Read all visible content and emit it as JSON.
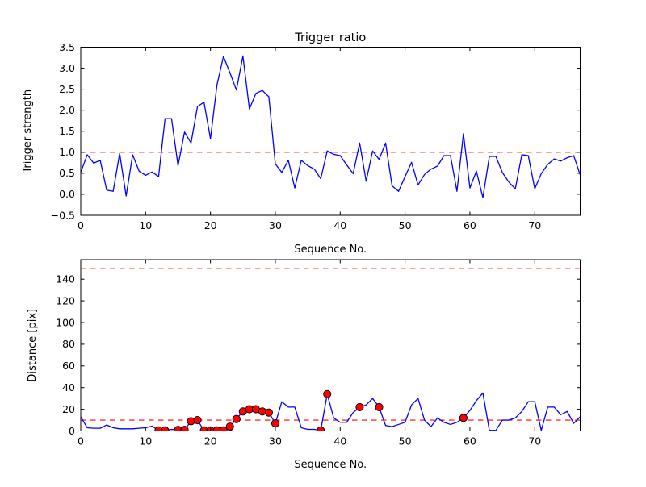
{
  "figure": {
    "background": "#ffffff",
    "frame_color": "#000000",
    "line_color": "#0000ff",
    "threshold_color": "#ff0000",
    "marker_fill": "#ff0000",
    "marker_edge": "#000000"
  },
  "chart_data": [
    {
      "type": "line",
      "title": "Trigger ratio",
      "xlabel": "Sequence No.",
      "ylabel": "Trigger strength",
      "xlim": [
        0,
        77
      ],
      "ylim": [
        -0.5,
        3.5
      ],
      "grid": false,
      "legend": "none",
      "xticks": [
        0,
        10,
        20,
        30,
        40,
        50,
        60,
        70
      ],
      "yticks": [
        -0.5,
        0.0,
        0.5,
        1.0,
        1.5,
        2.0,
        2.5,
        3.0,
        3.5
      ],
      "ytick_labels": [
        "−0.5",
        "0.0",
        "0.5",
        "1.0",
        "1.5",
        "2.0",
        "2.5",
        "3.0",
        "3.5"
      ],
      "line_color": "#0000ff",
      "thresholds": [
        {
          "y": 1.0,
          "color": "#ff0000",
          "style": "dashed"
        }
      ],
      "x_is_index": true,
      "values": [
        0.52,
        0.94,
        0.74,
        0.81,
        0.1,
        0.07,
        0.97,
        -0.04,
        0.94,
        0.55,
        0.45,
        0.53,
        0.42,
        1.8,
        1.8,
        0.68,
        1.48,
        1.22,
        2.09,
        2.19,
        1.32,
        2.6,
        3.28,
        2.89,
        2.48,
        3.29,
        2.03,
        2.4,
        2.47,
        2.32,
        0.72,
        0.52,
        0.81,
        0.15,
        0.81,
        0.68,
        0.6,
        0.37,
        1.03,
        0.95,
        0.92,
        0.7,
        0.49,
        1.22,
        0.31,
        1.03,
        0.83,
        1.22,
        0.2,
        0.07,
        0.42,
        0.76,
        0.22,
        0.47,
        0.6,
        0.67,
        0.92,
        0.92,
        0.07,
        1.44,
        0.15,
        0.55,
        -0.08,
        0.9,
        0.9,
        0.52,
        0.29,
        0.13,
        0.94,
        0.92,
        0.13,
        0.49,
        0.71,
        0.84,
        0.79,
        0.87,
        0.92,
        0.46
      ]
    },
    {
      "type": "line+scatter",
      "title": "",
      "xlabel": "Sequence No.",
      "ylabel": "Distance [pix]",
      "xlim": [
        0,
        77
      ],
      "ylim": [
        0,
        158
      ],
      "grid": false,
      "legend": "none",
      "xticks": [
        0,
        10,
        20,
        30,
        40,
        50,
        60,
        70
      ],
      "yticks": [
        0,
        20,
        40,
        60,
        80,
        100,
        120,
        140
      ],
      "ytick_labels": [
        "0",
        "20",
        "40",
        "60",
        "80",
        "100",
        "120",
        "140"
      ],
      "line_color": "#0000ff",
      "thresholds": [
        {
          "y": 150,
          "color": "#ff0000",
          "style": "dashed"
        },
        {
          "y": 10,
          "color": "#ff0000",
          "style": "dashed"
        }
      ],
      "x_is_index": true,
      "values": [
        13,
        3,
        2.5,
        2.5,
        5.5,
        3,
        2,
        2,
        2,
        2.5,
        3,
        4.5,
        0.5,
        0.5,
        1.5,
        1,
        1,
        9,
        10,
        0.5,
        0.5,
        0.5,
        0.5,
        4,
        11,
        18,
        20,
        20,
        18,
        17,
        7,
        27,
        22,
        22,
        3,
        1.5,
        1.5,
        0.5,
        34,
        12,
        8,
        8,
        17,
        22,
        24,
        30,
        22,
        5,
        4,
        6,
        8,
        24,
        30,
        10,
        4,
        12,
        8,
        6,
        8,
        12,
        19,
        28,
        35,
        0.5,
        0.5,
        10,
        10,
        12,
        18,
        27,
        27,
        0.5,
        22,
        22,
        15,
        18,
        7,
        13
      ],
      "markers": {
        "shape": "circle",
        "fill": "#ff0000",
        "edge": "#000000",
        "x": [
          12,
          13,
          15,
          16,
          17,
          18,
          19,
          20,
          21,
          22,
          23,
          24,
          25,
          26,
          27,
          28,
          29,
          30,
          37,
          38,
          43,
          46,
          59
        ],
        "y": [
          0.5,
          0.5,
          1,
          1,
          9,
          10,
          0.5,
          0.5,
          0.5,
          0.5,
          4,
          11,
          18,
          20,
          20,
          18,
          17,
          7,
          0.5,
          34,
          22,
          22,
          12
        ]
      }
    }
  ]
}
